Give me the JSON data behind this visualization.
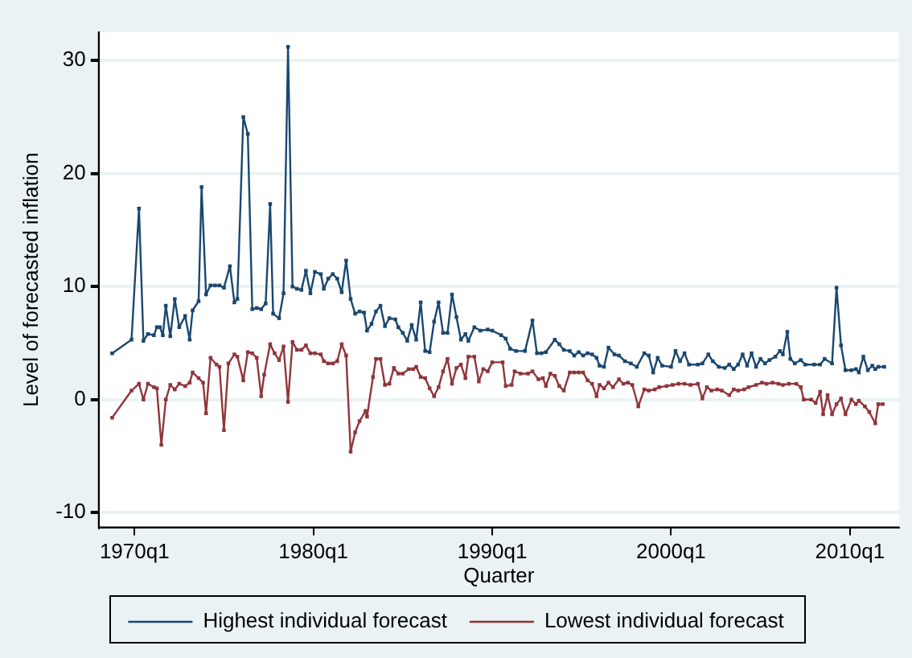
{
  "chart_data": {
    "type": "line",
    "xlabel": "Quarter",
    "ylabel": "Level of forecasted inflation",
    "xlim": [
      "1968-01",
      "2012-10"
    ],
    "ylim": [
      -11.3,
      32.5
    ],
    "xticks": [
      {
        "value": "1970-01",
        "label": "1970q1"
      },
      {
        "value": "1980-01",
        "label": "1980q1"
      },
      {
        "value": "1990-01",
        "label": "1990q1"
      },
      {
        "value": "2000-01",
        "label": "2000q1"
      },
      {
        "value": "2010-01",
        "label": "2010q1"
      }
    ],
    "yticks": [
      -10,
      0,
      10,
      20,
      30
    ],
    "grid": "y",
    "legend": "bottom",
    "marker": "square",
    "line_style": "solid",
    "series": [
      {
        "name": "Highest individual forecast",
        "color": "#1a476f",
        "x": [
          "1968-10",
          "1969-11",
          "1970-04",
          "1970-07",
          "1970-10",
          "1971-02",
          "1971-04",
          "1971-06",
          "1971-08",
          "1971-10",
          "1972-01",
          "1972-04",
          "1972-07",
          "1972-11",
          "1973-02",
          "1973-04",
          "1973-08",
          "1973-10",
          "1974-01",
          "1974-04",
          "1974-07",
          "1974-10",
          "1975-01",
          "1975-05",
          "1975-08",
          "1975-10",
          "1976-02",
          "1976-05",
          "1976-08",
          "1976-11",
          "1977-02",
          "1977-05",
          "1977-08",
          "1977-10",
          "1978-02",
          "1978-05",
          "1978-08",
          "1978-11",
          "1979-02",
          "1979-05",
          "1979-08",
          "1979-11",
          "1980-02",
          "1980-06",
          "1980-08",
          "1980-11",
          "1981-02",
          "1981-05",
          "1981-08",
          "1981-11",
          "1982-02",
          "1982-05",
          "1982-08",
          "1982-11",
          "1983-01",
          "1983-04",
          "1983-07",
          "1983-10",
          "1984-01",
          "1984-04",
          "1984-08",
          "1984-10",
          "1985-01",
          "1985-04",
          "1985-07",
          "1985-10",
          "1986-01",
          "1986-04",
          "1986-07",
          "1986-10",
          "1987-01",
          "1987-04",
          "1987-07",
          "1987-10",
          "1988-01",
          "1988-04",
          "1988-07",
          "1988-09",
          "1989-01",
          "1989-05",
          "1989-10",
          "1990-01",
          "1990-07",
          "1990-10",
          "1991-01",
          "1991-05",
          "1991-11",
          "1992-04",
          "1992-07",
          "1992-10",
          "1993-01",
          "1993-07",
          "1993-10",
          "1994-01",
          "1994-05",
          "1994-08",
          "1994-11",
          "1995-02",
          "1995-05",
          "1995-08",
          "1995-11",
          "1996-01",
          "1996-04",
          "1996-07",
          "1996-11",
          "1997-02",
          "1997-06",
          "1997-10",
          "1998-02",
          "1998-07",
          "1998-10",
          "1999-01",
          "1999-04",
          "1999-07",
          "2000-01",
          "2000-04",
          "2000-07",
          "2000-10",
          "2001-01",
          "2001-07",
          "2001-10",
          "2002-02",
          "2002-05",
          "2002-09",
          "2003-01",
          "2003-04",
          "2003-07",
          "2003-10",
          "2004-01",
          "2004-04",
          "2004-07",
          "2004-10",
          "2005-01",
          "2005-04",
          "2005-07",
          "2005-11",
          "2006-02",
          "2006-04",
          "2006-07",
          "2006-09",
          "2006-12",
          "2007-04",
          "2007-07",
          "2008-01",
          "2008-05",
          "2008-08",
          "2009-01",
          "2009-04",
          "2009-07",
          "2009-10",
          "2010-02",
          "2010-05",
          "2010-07",
          "2010-10",
          "2011-01",
          "2011-04",
          "2011-06",
          "2011-08",
          "2011-12"
        ],
        "values": [
          4.1,
          5.3,
          16.9,
          5.2,
          5.8,
          5.7,
          6.4,
          6.4,
          5.7,
          8.3,
          5.6,
          8.9,
          6.4,
          7.4,
          5.3,
          7.9,
          8.7,
          18.8,
          9.3,
          10.1,
          10.1,
          10.1,
          9.9,
          11.8,
          8.6,
          8.9,
          25.0,
          23.5,
          8.0,
          8.1,
          8.0,
          8.5,
          17.3,
          7.6,
          7.2,
          9.4,
          31.2,
          10.0,
          9.8,
          9.7,
          11.4,
          9.4,
          11.3,
          11.1,
          9.8,
          10.7,
          11.1,
          10.7,
          9.5,
          12.3,
          8.9,
          7.6,
          7.8,
          7.7,
          6.1,
          6.7,
          7.8,
          8.3,
          6.5,
          7.2,
          7.1,
          6.4,
          5.9,
          5.2,
          6.6,
          5.3,
          8.6,
          4.3,
          4.2,
          6.9,
          8.6,
          5.9,
          5.9,
          9.3,
          7.3,
          5.3,
          5.8,
          5.2,
          6.4,
          6.1,
          6.2,
          6.1,
          5.7,
          5.4,
          4.5,
          4.3,
          4.3,
          7.0,
          4.1,
          4.1,
          4.2,
          5.3,
          4.9,
          4.4,
          4.3,
          3.9,
          4.2,
          3.9,
          4.1,
          4.0,
          3.7,
          3.0,
          2.9,
          4.6,
          4.0,
          3.9,
          3.4,
          3.2,
          2.9,
          4.1,
          3.9,
          2.4,
          3.7,
          3.0,
          2.9,
          4.3,
          3.4,
          4.1,
          3.1,
          3.1,
          3.2,
          4.0,
          3.4,
          2.9,
          2.8,
          3.1,
          2.7,
          3.1,
          4.0,
          3.0,
          4.1,
          2.9,
          3.6,
          3.2,
          3.5,
          3.8,
          4.3,
          4.0,
          6.0,
          3.6,
          3.2,
          3.5,
          3.1,
          3.1,
          3.1,
          3.6,
          3.2,
          9.9,
          4.8,
          2.6,
          2.6,
          2.7,
          2.4,
          3.8,
          2.6,
          3.0,
          2.7,
          2.9,
          2.9
        ]
      },
      {
        "name": "Lowest individual forecast",
        "color": "#90353b",
        "x": [
          "1968-10",
          "1969-11",
          "1970-04",
          "1970-07",
          "1970-10",
          "1971-02",
          "1971-04",
          "1971-07",
          "1971-10",
          "1972-01",
          "1972-04",
          "1972-07",
          "1972-11",
          "1973-02",
          "1973-04",
          "1973-08",
          "1973-11",
          "1974-01",
          "1974-04",
          "1974-08",
          "1974-10",
          "1975-01",
          "1975-04",
          "1975-08",
          "1975-10",
          "1976-02",
          "1976-05",
          "1976-08",
          "1976-11",
          "1977-02",
          "1977-04",
          "1977-08",
          "1977-11",
          "1978-02",
          "1978-05",
          "1978-08",
          "1978-11",
          "1979-02",
          "1979-05",
          "1979-08",
          "1979-11",
          "1980-02",
          "1980-06",
          "1980-08",
          "1980-11",
          "1981-02",
          "1981-05",
          "1981-08",
          "1981-11",
          "1982-02",
          "1982-05",
          "1982-08",
          "1982-12",
          "1983-01",
          "1983-05",
          "1983-07",
          "1983-10",
          "1984-01",
          "1984-04",
          "1984-07",
          "1984-10",
          "1985-01",
          "1985-05",
          "1985-08",
          "1985-10",
          "1986-01",
          "1986-04",
          "1986-07",
          "1986-10",
          "1987-01",
          "1987-04",
          "1987-07",
          "1987-10",
          "1988-01",
          "1988-04",
          "1988-07",
          "1988-09",
          "1989-01",
          "1989-04",
          "1989-07",
          "1989-10",
          "1990-01",
          "1990-08",
          "1990-10",
          "1991-02",
          "1991-04",
          "1991-08",
          "1992-01",
          "1992-04",
          "1992-08",
          "1992-11",
          "1993-01",
          "1993-04",
          "1993-07",
          "1993-10",
          "1994-01",
          "1994-05",
          "1994-08",
          "1994-11",
          "1995-02",
          "1995-05",
          "1995-08",
          "1995-11",
          "1996-01",
          "1996-04",
          "1996-07",
          "1996-10",
          "1997-02",
          "1997-05",
          "1997-08",
          "1997-11",
          "1998-03",
          "1998-07",
          "1998-10",
          "1999-02",
          "1999-05",
          "1999-10",
          "2000-02",
          "2000-06",
          "2000-10",
          "2001-02",
          "2001-07",
          "2001-10",
          "2002-01",
          "2002-04",
          "2002-08",
          "2002-11",
          "2003-04",
          "2003-07",
          "2003-10",
          "2004-02",
          "2004-05",
          "2004-10",
          "2005-02",
          "2005-05",
          "2005-09",
          "2006-01",
          "2006-04",
          "2006-08",
          "2007-01",
          "2007-04",
          "2007-06",
          "2007-11",
          "2008-02",
          "2008-05",
          "2008-07",
          "2008-10",
          "2009-01",
          "2009-04",
          "2009-07",
          "2009-10",
          "2010-02",
          "2010-05",
          "2010-07",
          "2010-11",
          "2011-02",
          "2011-06",
          "2011-08",
          "2011-11"
        ],
        "values": [
          -1.6,
          0.8,
          1.4,
          0.0,
          1.4,
          1.1,
          1.0,
          -4.0,
          0.0,
          1.3,
          0.9,
          1.4,
          1.2,
          1.5,
          2.4,
          1.9,
          1.5,
          -1.2,
          3.7,
          3.1,
          2.9,
          -2.7,
          3.2,
          4.0,
          3.8,
          1.7,
          4.2,
          4.1,
          3.7,
          0.3,
          2.2,
          4.9,
          4.1,
          3.5,
          4.7,
          -0.2,
          5.1,
          4.4,
          4.4,
          4.8,
          4.1,
          4.1,
          4.0,
          3.4,
          3.2,
          3.2,
          3.4,
          4.9,
          3.9,
          -4.6,
          -2.9,
          -1.9,
          -1.0,
          -1.5,
          2.0,
          3.6,
          3.6,
          1.3,
          1.4,
          2.8,
          2.3,
          2.3,
          2.7,
          2.7,
          2.9,
          2.0,
          1.9,
          1.0,
          0.3,
          1.1,
          2.5,
          3.6,
          1.4,
          2.8,
          3.1,
          1.9,
          3.8,
          3.8,
          1.6,
          2.7,
          2.5,
          3.3,
          3.3,
          1.2,
          1.3,
          2.5,
          2.3,
          2.3,
          2.5,
          1.8,
          1.9,
          1.2,
          2.3,
          2.1,
          1.2,
          0.8,
          2.4,
          2.4,
          2.4,
          2.4,
          1.7,
          1.4,
          0.3,
          1.3,
          1.0,
          1.5,
          1.1,
          1.8,
          1.4,
          1.5,
          1.3,
          -0.6,
          0.9,
          0.8,
          0.9,
          1.1,
          1.2,
          1.3,
          1.4,
          1.4,
          1.3,
          1.4,
          0.1,
          1.1,
          0.8,
          0.9,
          0.8,
          0.4,
          0.9,
          0.8,
          0.9,
          1.1,
          1.3,
          1.5,
          1.4,
          1.5,
          1.4,
          1.3,
          1.4,
          1.4,
          1.1,
          0.0,
          0.0,
          -0.3,
          0.7,
          -1.3,
          0.4,
          -1.3,
          -0.4,
          0.1,
          -1.3,
          0.0,
          -0.4,
          -0.1,
          -0.6,
          -1.1,
          -2.1,
          -0.4,
          -0.4
        ]
      }
    ]
  }
}
